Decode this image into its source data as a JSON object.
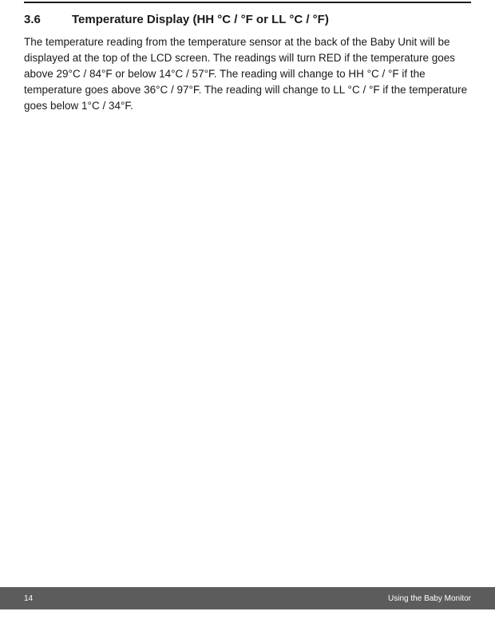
{
  "colors": {
    "rule": "#1a1a1a",
    "text": "#1a1a1a",
    "footer_bg": "#5c5c5c",
    "footer_text": "#ffffff",
    "page_bg": "#ffffff"
  },
  "typography": {
    "heading_fontsize": 15,
    "heading_weight": 700,
    "body_fontsize": 13.5,
    "body_lineheight": 1.48,
    "footer_fontsize": 10
  },
  "heading": {
    "number": "3.6",
    "title": "Temperature Display (HH °C / °F or LL °C / °F)"
  },
  "body": "The temperature reading from the temperature sensor at the back of the Baby Unit will be displayed at the top of the LCD screen. The readings will turn RED if the temperature goes above 29°C / 84°F or below 14°C / 57°F. The reading will change to HH °C / °F if the temperature goes above 36°C / 97°F. The reading will change to LL °C / °F if the temperature goes below 1°C / 34°F.",
  "footer": {
    "page_number": "14",
    "section_title": "Using the Baby Monitor"
  }
}
